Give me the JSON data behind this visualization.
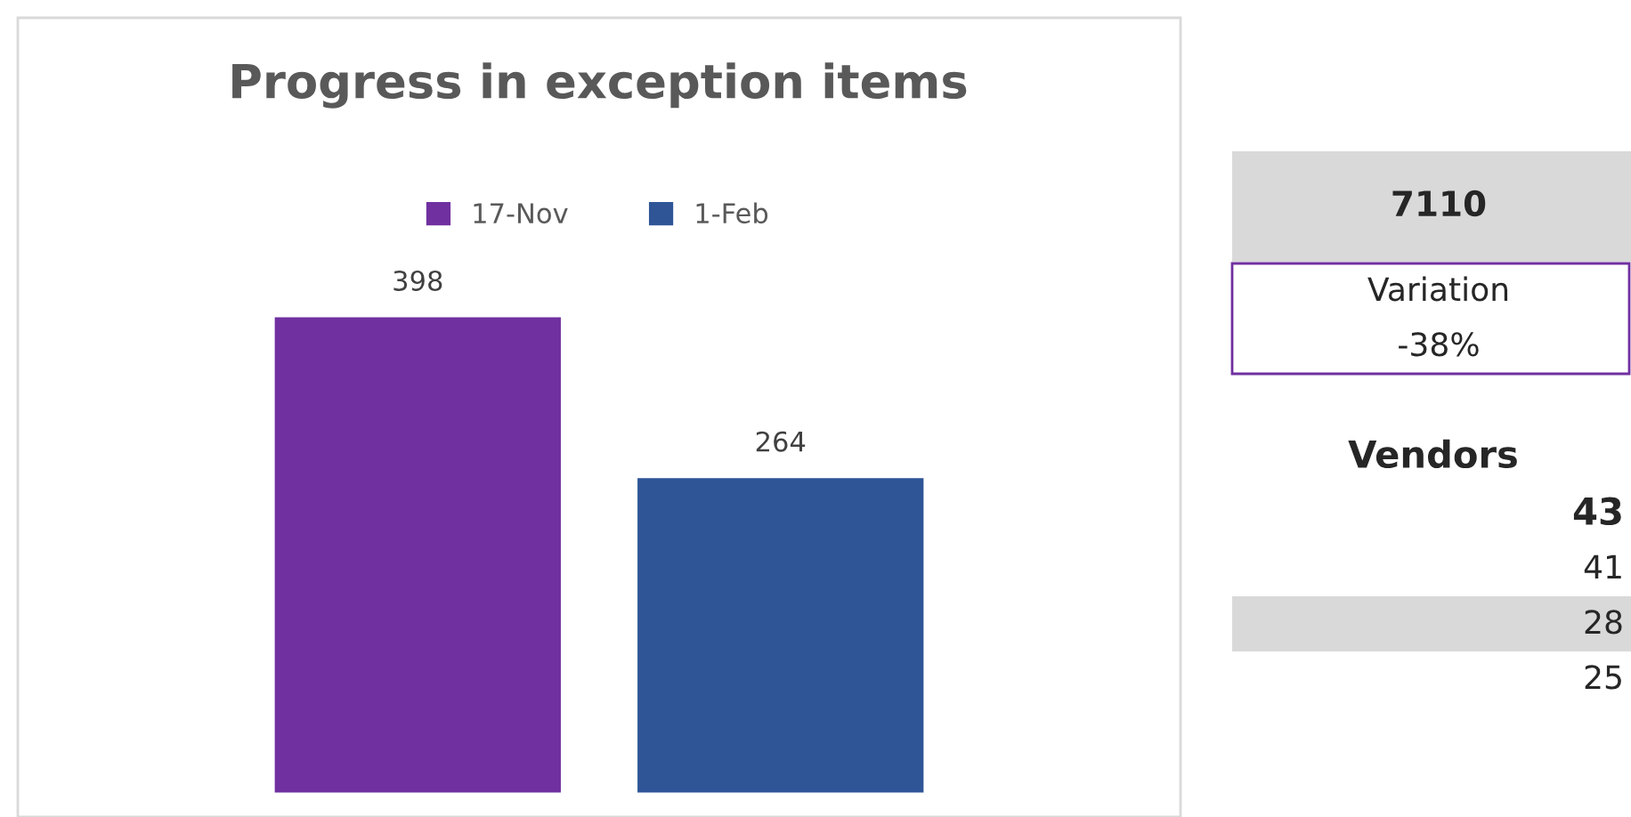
{
  "chart_data": [
    {
      "type": "bar",
      "title": "Progress in exception items",
      "categories": [
        null
      ],
      "series": [
        {
          "name": "17-Nov",
          "color": "#7030a0",
          "values": [
            398
          ]
        },
        {
          "name": "1-Feb",
          "color": "#2f5597",
          "values": [
            264
          ]
        }
      ],
      "tick_labels": false,
      "data_labels": true,
      "legend": "top",
      "grid": false
    },
    {
      "type": "other",
      "annotations": [
        "7110",
        "Variation",
        "-38%",
        "Vendors",
        "43",
        "41",
        "28",
        "25"
      ]
    }
  ]
}
